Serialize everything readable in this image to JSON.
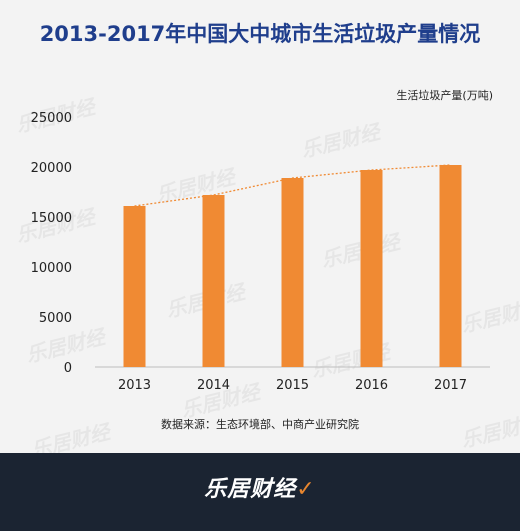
{
  "header": {
    "title": "2013-2017年中国大中城市生活垃圾产量情况",
    "unit_label": "生活垃圾产量(万吨)"
  },
  "source_text": "数据来源：生态环境部、中商产业研究院",
  "brand": {
    "name": "乐居财经",
    "accent": "#e8862f"
  },
  "watermark": {
    "text": "乐居财经"
  },
  "colors": {
    "bar": "#f08a33",
    "title": "#1f3e8c",
    "trend": "#f08a33",
    "footer": "#1b2432"
  },
  "chart_data": {
    "type": "bar",
    "title": "2013-2017年中国大中城市生活垃圾产量情况",
    "xlabel": "",
    "ylabel": "生活垃圾产量(万吨)",
    "categories": [
      "2013",
      "2014",
      "2015",
      "2016",
      "2017"
    ],
    "values": [
      16100,
      17200,
      18900,
      19700,
      20200
    ],
    "ylim": [
      0,
      25000
    ],
    "yticks": [
      0,
      5000,
      10000,
      15000,
      20000,
      25000
    ],
    "trendline": true,
    "grid": false,
    "legend": "none"
  }
}
